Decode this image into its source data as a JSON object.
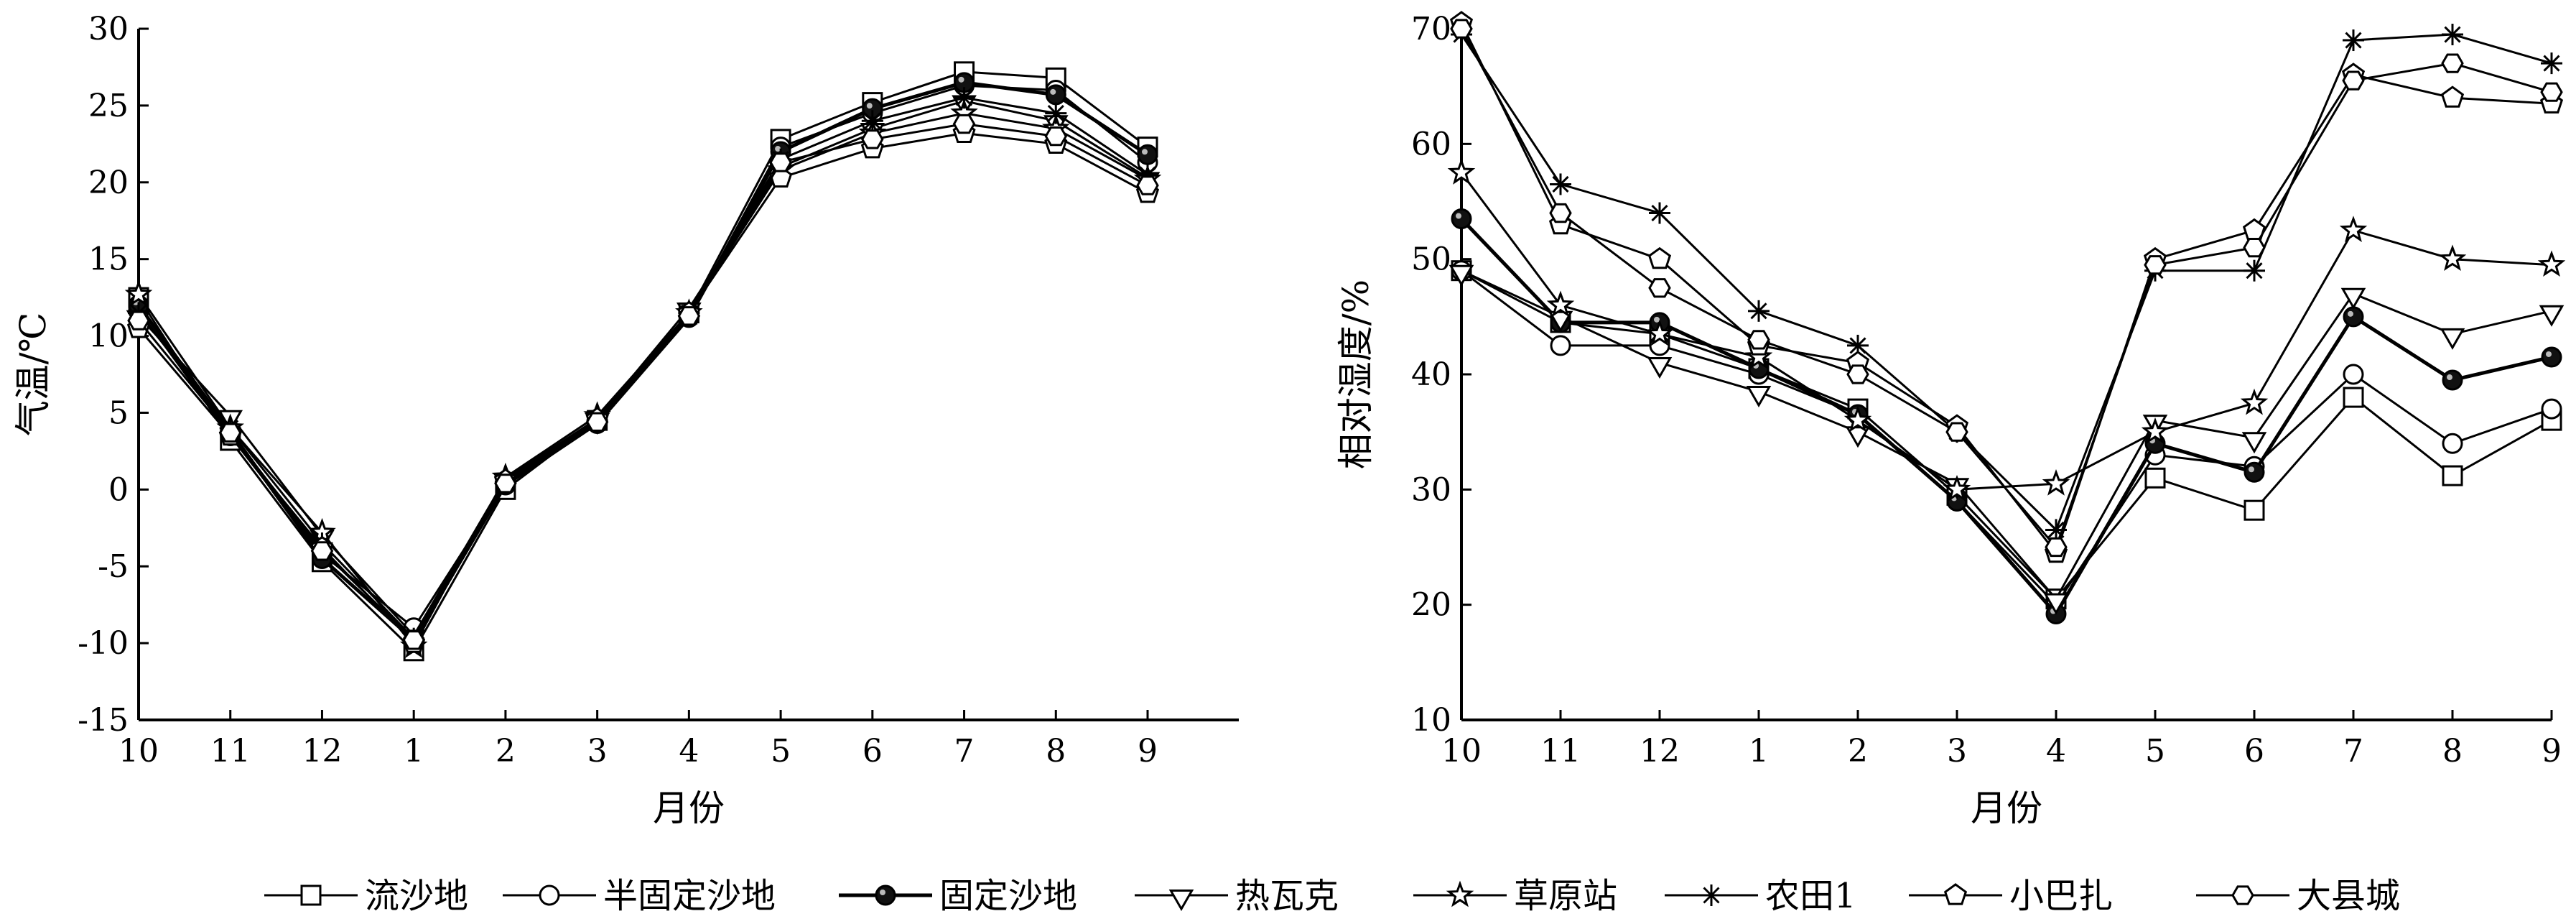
{
  "chart_data": [
    {
      "type": "line",
      "xlabel": "月份",
      "ylabel": "气温/℃",
      "categories": [
        "10",
        "11",
        "12",
        "1",
        "2",
        "3",
        "4",
        "5",
        "6",
        "7",
        "8",
        "9"
      ],
      "ylim": [
        -15,
        30
      ],
      "yticks": [
        -15,
        -10,
        -5,
        0,
        5,
        10,
        15,
        20,
        25,
        30
      ],
      "ytick_labels": [
        "-15",
        "-10",
        "-5",
        "0",
        "5",
        "10",
        "15",
        "20",
        "25",
        "30"
      ],
      "grid": false,
      "series": [
        {
          "name": "流沙地",
          "marker": "square",
          "values": [
            12.5,
            3.2,
            -4.7,
            -10.5,
            0.0,
            4.5,
            11.5,
            22.8,
            25.2,
            27.2,
            26.8,
            22.3
          ]
        },
        {
          "name": "半固定沙地",
          "marker": "circle",
          "values": [
            11.7,
            3.5,
            -4.2,
            -9.0,
            0.3,
            4.3,
            11.3,
            22.3,
            24.5,
            26.3,
            26.0,
            21.3
          ]
        },
        {
          "name": "固定沙地",
          "marker": "circle-filled",
          "values": [
            12.0,
            3.8,
            -4.5,
            -9.8,
            0.3,
            4.3,
            11.2,
            22.0,
            24.8,
            26.5,
            25.7,
            21.8
          ]
        },
        {
          "name": "热瓦克",
          "marker": "triangle-down",
          "values": [
            11.3,
            4.8,
            -3.0,
            -9.5,
            0.7,
            4.6,
            11.8,
            21.0,
            23.5,
            25.3,
            24.0,
            20.3
          ]
        },
        {
          "name": "草原站",
          "marker": "star",
          "values": [
            12.7,
            4.0,
            -2.8,
            -10.2,
            0.8,
            4.8,
            11.5,
            20.8,
            23.2,
            24.5,
            23.5,
            20.2
          ]
        },
        {
          "name": "农田1",
          "marker": "asterisk",
          "values": [
            11.5,
            4.0,
            -3.5,
            -9.7,
            0.5,
            4.5,
            11.5,
            21.5,
            24.0,
            25.5,
            24.5,
            20.5
          ]
        },
        {
          "name": "小巴扎",
          "marker": "pentagon",
          "values": [
            10.5,
            3.5,
            -3.8,
            -10.0,
            0.6,
            4.6,
            11.5,
            20.3,
            22.2,
            23.2,
            22.5,
            19.3
          ]
        },
        {
          "name": "大县城",
          "marker": "hexagon",
          "values": [
            11.0,
            3.7,
            -4.0,
            -9.8,
            0.4,
            4.4,
            11.3,
            21.3,
            22.8,
            23.8,
            23.0,
            19.8
          ]
        }
      ]
    },
    {
      "type": "line",
      "xlabel": "月份",
      "ylabel": "相对湿度/%",
      "categories": [
        "10",
        "11",
        "12",
        "1",
        "2",
        "3",
        "4",
        "5",
        "6",
        "7",
        "8",
        "9"
      ],
      "ylim": [
        10,
        70
      ],
      "yticks": [
        10,
        20,
        30,
        40,
        50,
        60,
        70
      ],
      "ytick_labels": [
        "10",
        "20",
        "30",
        "40",
        "50",
        "60",
        "70"
      ],
      "grid": false,
      "series": [
        {
          "name": "流沙地",
          "marker": "square",
          "values": [
            49.0,
            44.5,
            43.5,
            40.5,
            37.0,
            29.5,
            20.5,
            31.0,
            28.2,
            38.0,
            31.2,
            36.0
          ]
        },
        {
          "name": "半固定沙地",
          "marker": "circle",
          "values": [
            49.0,
            42.5,
            42.5,
            40.0,
            36.5,
            29.0,
            20.0,
            33.0,
            32.0,
            40.0,
            34.0,
            37.0
          ]
        },
        {
          "name": "固定沙地",
          "marker": "circle-filled",
          "values": [
            53.5,
            44.5,
            44.5,
            40.5,
            36.5,
            29.0,
            19.2,
            34.0,
            31.5,
            45.0,
            39.5,
            41.5
          ]
        },
        {
          "name": "热瓦克",
          "marker": "triangle-down",
          "values": [
            49.0,
            45.0,
            41.0,
            38.5,
            35.0,
            30.5,
            20.5,
            36.0,
            34.5,
            47.0,
            43.5,
            45.5
          ]
        },
        {
          "name": "草原站",
          "marker": "star",
          "values": [
            57.5,
            46.0,
            43.5,
            41.5,
            36.0,
            30.0,
            30.5,
            35.0,
            37.5,
            52.5,
            50.0,
            49.5
          ]
        },
        {
          "name": "农田1",
          "marker": "asterisk",
          "values": [
            69.5,
            56.5,
            54.0,
            45.5,
            42.5,
            35.0,
            26.5,
            49.0,
            49.0,
            69.0,
            69.5,
            67.0
          ]
        },
        {
          "name": "小巴扎",
          "marker": "pentagon",
          "values": [
            70.5,
            53.0,
            50.0,
            42.5,
            41.0,
            35.5,
            24.5,
            50.0,
            52.5,
            66.0,
            64.0,
            63.5
          ]
        },
        {
          "name": "大县城",
          "marker": "hexagon",
          "values": [
            70.0,
            54.0,
            47.5,
            43.0,
            40.0,
            35.0,
            25.0,
            49.5,
            51.0,
            65.5,
            67.0,
            64.5
          ]
        }
      ]
    }
  ],
  "legend": {
    "placement": "bottom",
    "items": [
      {
        "name": "流沙地",
        "marker": "square"
      },
      {
        "name": "半固定沙地",
        "marker": "circle"
      },
      {
        "name": "固定沙地",
        "marker": "circle-filled"
      },
      {
        "name": "热瓦克",
        "marker": "triangle-down"
      },
      {
        "name": "草原站",
        "marker": "star"
      },
      {
        "name": "农田1",
        "marker": "asterisk"
      },
      {
        "name": "小巴扎",
        "marker": "pentagon"
      },
      {
        "name": "大县城",
        "marker": "hexagon"
      }
    ]
  }
}
